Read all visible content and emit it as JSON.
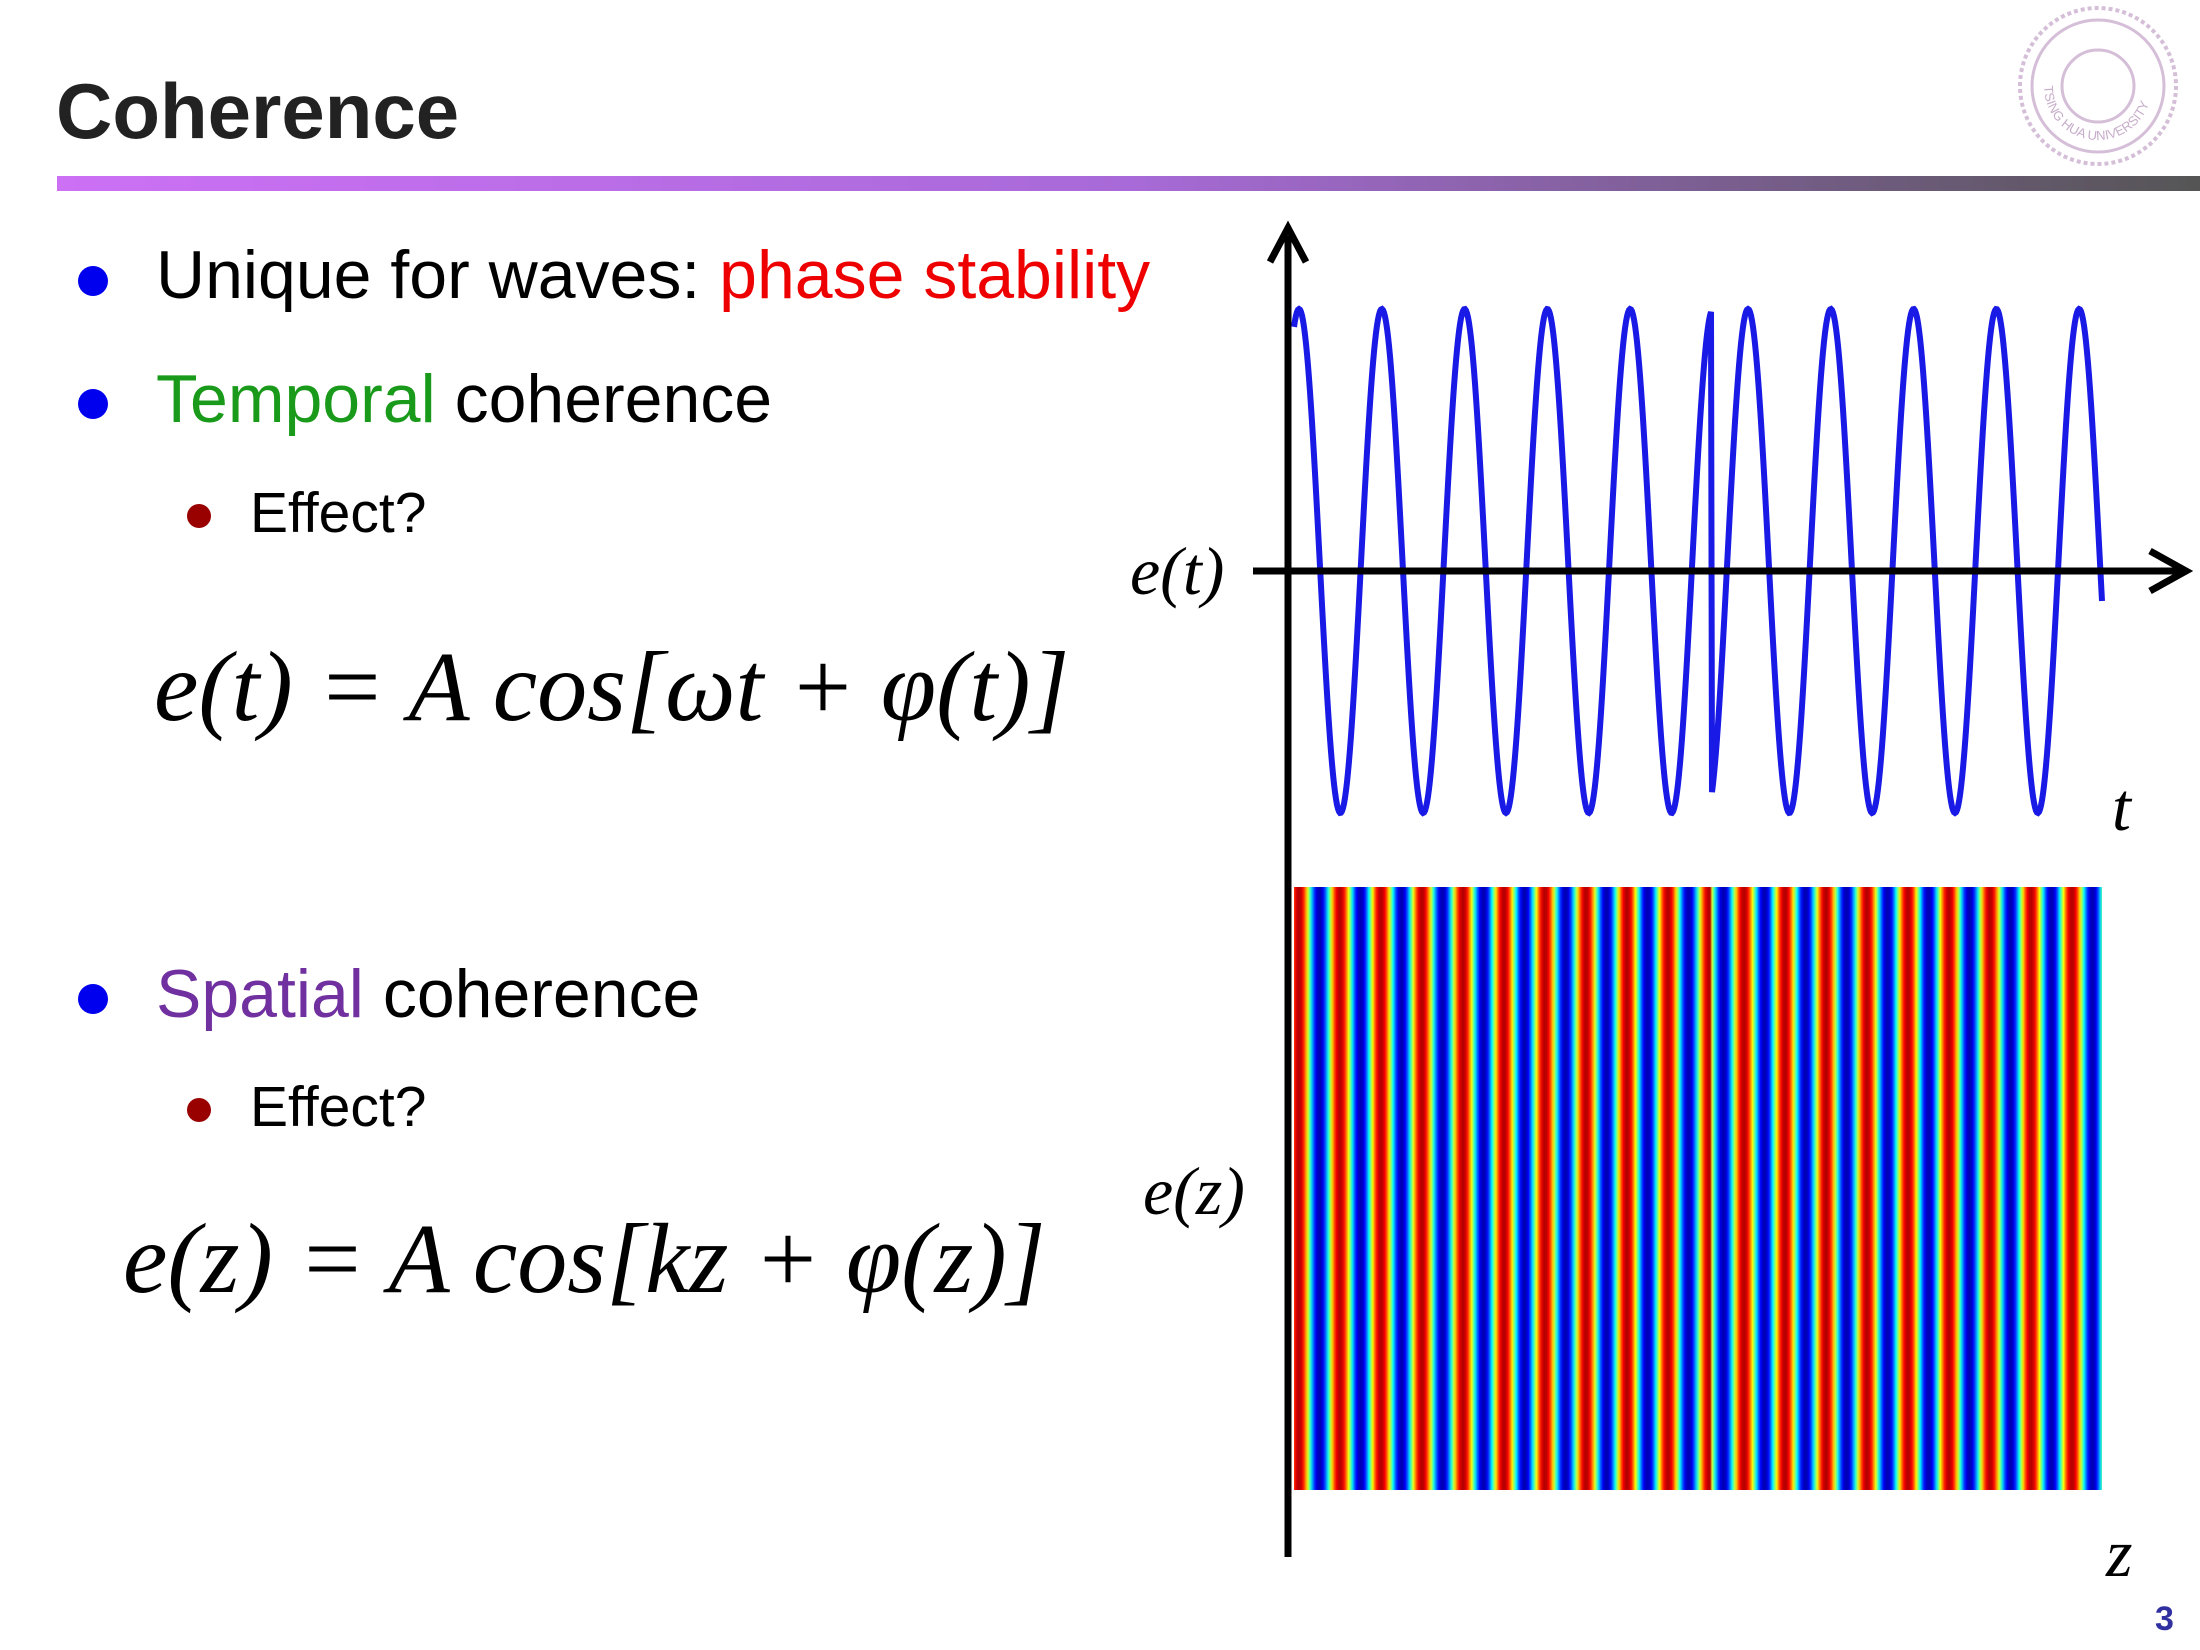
{
  "header": {
    "title": "Coherence",
    "logo_text": "TSING HUA UNIVERSITY"
  },
  "bullets": [
    {
      "parts": [
        "Unique for waves: ",
        "phase stability"
      ]
    },
    {
      "parts": [
        "Temporal",
        " coherence"
      ],
      "sub": "Effect?",
      "equation": "e(t) = A cos[ωt + φ(t)]"
    },
    {
      "parts": [
        "Spatial",
        " coherence"
      ],
      "sub": "Effect?",
      "equation": "e(z) = A cos[kz + φ(z)]"
    }
  ],
  "figure": {
    "time_label": "e(t)",
    "time_axis": "t",
    "space_label": "e(z)",
    "space_axis": "z"
  },
  "page_number": "3"
}
